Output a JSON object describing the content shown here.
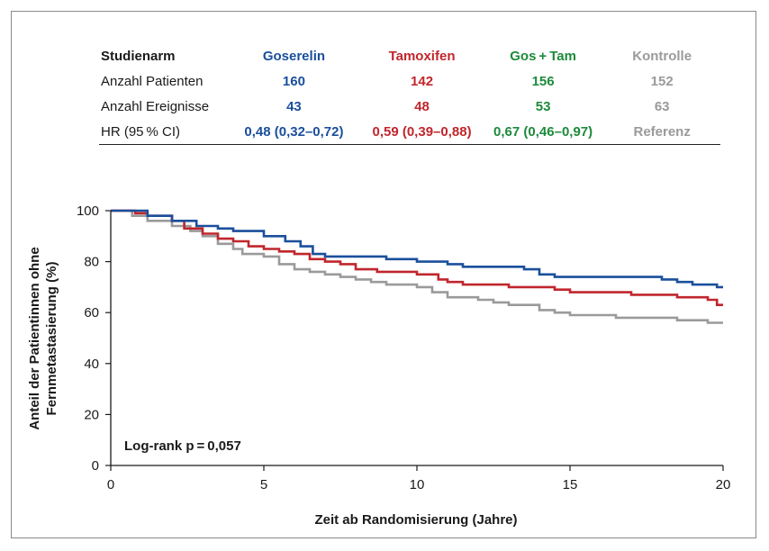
{
  "table": {
    "columns": [
      {
        "label": "Studienarm"
      },
      {
        "label": "Goserelin",
        "color": "#1a4f9c"
      },
      {
        "label": "Tamoxifen",
        "color": "#c0262c"
      },
      {
        "label": "Gos + Tam",
        "color": "#1e8a3c"
      },
      {
        "label": "Kontrolle",
        "color": "#9a9a9a"
      }
    ],
    "rows": [
      {
        "label": "Anzahl Patienten",
        "values": [
          "160",
          "142",
          "156",
          "152"
        ]
      },
      {
        "label": "Anzahl Ereignisse",
        "values": [
          "43",
          "48",
          "53",
          "63"
        ]
      },
      {
        "label": "HR (95 % CI)",
        "values": [
          "0,48 (0,32–0,72)",
          "0,59 (0,39–0,88)",
          "0,67 (0,46–0,97)",
          "Referenz"
        ]
      }
    ]
  },
  "chart_data": {
    "type": "line",
    "xlabel": "Zeit ab Randomisierung (Jahre)",
    "ylabel_line1": "Anteil der Patientinnen ohne",
    "ylabel_line2": "Fernmetastasierung (%)",
    "xlim": [
      0,
      20
    ],
    "ylim": [
      0,
      100
    ],
    "xticks": [
      "0",
      "5",
      "10",
      "15",
      "20"
    ],
    "yticks": [
      "0",
      "20",
      "40",
      "60",
      "80",
      "100"
    ],
    "annotation": "Log-rank p = 0,057",
    "grid": false,
    "series": [
      {
        "name": "Goserelin",
        "color": "#1a4f9c",
        "points": [
          [
            0,
            100
          ],
          [
            0.8,
            100
          ],
          [
            1.2,
            98
          ],
          [
            2,
            96
          ],
          [
            2.8,
            94
          ],
          [
            3.5,
            93
          ],
          [
            4,
            92
          ],
          [
            5,
            90
          ],
          [
            5.7,
            88
          ],
          [
            6.2,
            86
          ],
          [
            6.6,
            83
          ],
          [
            7,
            82
          ],
          [
            8,
            82
          ],
          [
            9,
            81
          ],
          [
            10,
            80
          ],
          [
            11,
            79
          ],
          [
            11.5,
            78
          ],
          [
            12.5,
            78
          ],
          [
            13.5,
            77
          ],
          [
            14,
            75
          ],
          [
            14.5,
            74
          ],
          [
            15,
            74
          ],
          [
            16,
            74
          ],
          [
            17,
            74
          ],
          [
            18,
            73
          ],
          [
            18.5,
            72
          ],
          [
            19,
            71
          ],
          [
            19.8,
            70
          ],
          [
            20,
            70
          ]
        ]
      },
      {
        "name": "Tamoxifen",
        "color": "#c0262c",
        "points": [
          [
            0,
            100
          ],
          [
            0.8,
            99
          ],
          [
            1.2,
            98
          ],
          [
            2,
            96
          ],
          [
            2.4,
            93
          ],
          [
            3,
            91
          ],
          [
            3.5,
            89
          ],
          [
            4,
            88
          ],
          [
            4.5,
            86
          ],
          [
            5,
            85
          ],
          [
            5.5,
            84
          ],
          [
            6,
            83
          ],
          [
            6.5,
            81
          ],
          [
            7,
            80
          ],
          [
            7.5,
            79
          ],
          [
            8,
            77
          ],
          [
            8.7,
            76
          ],
          [
            9.5,
            76
          ],
          [
            10,
            75
          ],
          [
            10.7,
            73
          ],
          [
            11,
            72
          ],
          [
            11.5,
            71
          ],
          [
            12.5,
            71
          ],
          [
            13,
            70
          ],
          [
            14,
            70
          ],
          [
            14.5,
            69
          ],
          [
            15,
            68
          ],
          [
            16,
            68
          ],
          [
            17,
            67
          ],
          [
            18,
            67
          ],
          [
            18.5,
            66
          ],
          [
            19,
            66
          ],
          [
            19.5,
            65
          ],
          [
            19.8,
            63
          ],
          [
            20,
            63
          ]
        ]
      },
      {
        "name": "Kontrolle",
        "color": "#9a9a9a",
        "points": [
          [
            0,
            100
          ],
          [
            0.7,
            98
          ],
          [
            1.2,
            96
          ],
          [
            2,
            94
          ],
          [
            2.6,
            92
          ],
          [
            3,
            90
          ],
          [
            3.5,
            87
          ],
          [
            4,
            85
          ],
          [
            4.3,
            83
          ],
          [
            5,
            82
          ],
          [
            5.5,
            79
          ],
          [
            6,
            77
          ],
          [
            6.5,
            76
          ],
          [
            7,
            75
          ],
          [
            7.5,
            74
          ],
          [
            8,
            73
          ],
          [
            8.5,
            72
          ],
          [
            9,
            71
          ],
          [
            10,
            70
          ],
          [
            10.5,
            68
          ],
          [
            11,
            66
          ],
          [
            12,
            65
          ],
          [
            12.5,
            64
          ],
          [
            13,
            63
          ],
          [
            14,
            61
          ],
          [
            14.5,
            60
          ],
          [
            15,
            59
          ],
          [
            16,
            59
          ],
          [
            16.5,
            58
          ],
          [
            17,
            58
          ],
          [
            18,
            58
          ],
          [
            18.5,
            57
          ],
          [
            19,
            57
          ],
          [
            19.5,
            56
          ],
          [
            20,
            56
          ]
        ]
      }
    ]
  }
}
